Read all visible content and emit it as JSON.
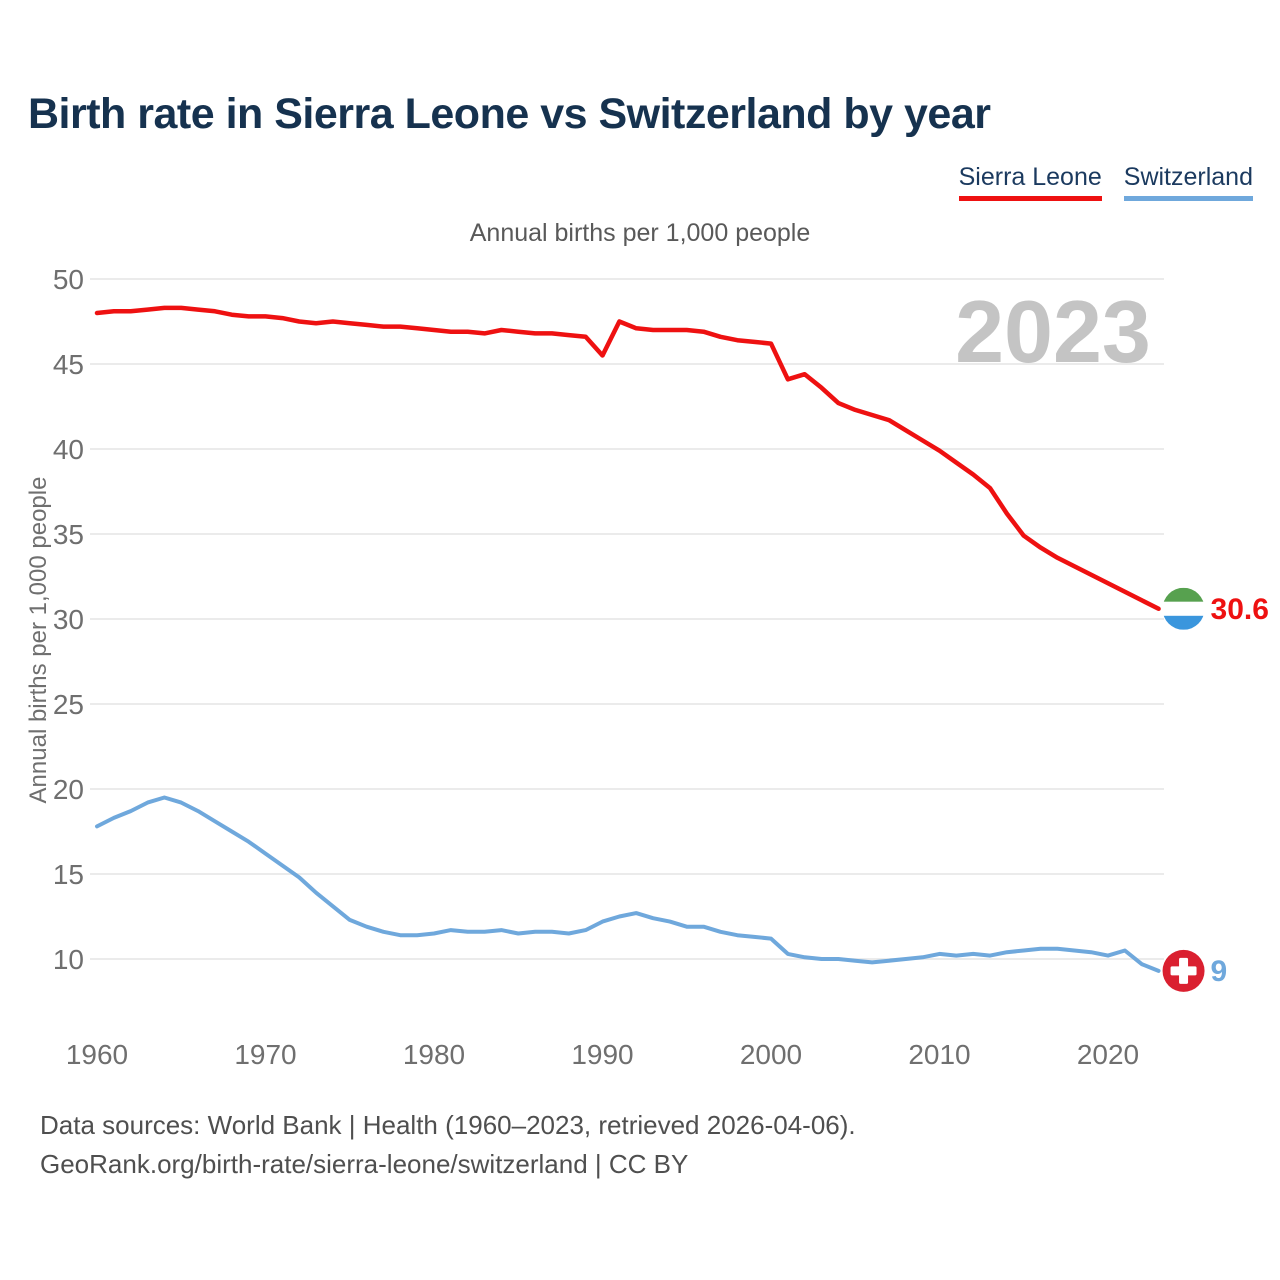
{
  "title": "Birth rate in Sierra Leone vs Switzerland by year",
  "subtitle": "Annual births per 1,000 people",
  "watermark": "2023",
  "legend": [
    {
      "label": "Sierra Leone",
      "color": "#ee1111"
    },
    {
      "label": "Switzerland",
      "color": "#6fa8dc"
    }
  ],
  "footer": {
    "line1": "Data sources: World Bank | Health (1960–2023, retrieved 2026-04-06).",
    "line2": "GeoRank.org/birth-rate/sierra-leone/switzerland | CC BY"
  },
  "chart_data": {
    "type": "line",
    "title": "Birth rate in Sierra Leone vs Switzerland by year",
    "ylabel": "Annual births per 1,000 people",
    "xlabel": "",
    "grid": "horizontal",
    "legend_position": "top-right",
    "ylim": [
      8.5,
      50
    ],
    "xlim": [
      1960,
      2023
    ],
    "yticks": [
      10,
      15,
      20,
      25,
      30,
      35,
      40,
      45,
      50
    ],
    "xticks": [
      1960,
      1970,
      1980,
      1990,
      2000,
      2010,
      2020
    ],
    "x": [
      1960,
      1961,
      1962,
      1963,
      1964,
      1965,
      1966,
      1967,
      1968,
      1969,
      1970,
      1971,
      1972,
      1973,
      1974,
      1975,
      1976,
      1977,
      1978,
      1979,
      1980,
      1981,
      1982,
      1983,
      1984,
      1985,
      1986,
      1987,
      1988,
      1989,
      1990,
      1991,
      1992,
      1993,
      1994,
      1995,
      1996,
      1997,
      1998,
      1999,
      2000,
      2001,
      2002,
      2003,
      2004,
      2005,
      2006,
      2007,
      2008,
      2009,
      2010,
      2011,
      2012,
      2013,
      2014,
      2015,
      2016,
      2017,
      2018,
      2019,
      2020,
      2021,
      2022,
      2023
    ],
    "series": [
      {
        "name": "Sierra Leone",
        "color": "#ee1111",
        "line_width": 4.5,
        "end_label": "30.6",
        "flag": "sierra-leone",
        "flag_colors": {
          "top": "#57a14f",
          "middle": "#ffffff",
          "bottom": "#3a96dd"
        },
        "values": [
          48.0,
          48.1,
          48.1,
          48.2,
          48.3,
          48.3,
          48.2,
          48.1,
          47.9,
          47.8,
          47.8,
          47.7,
          47.5,
          47.4,
          47.5,
          47.4,
          47.3,
          47.2,
          47.2,
          47.1,
          47.0,
          46.9,
          46.9,
          46.8,
          47.0,
          46.9,
          46.8,
          46.8,
          46.7,
          46.6,
          45.5,
          47.5,
          47.1,
          47.0,
          47.0,
          47.0,
          46.9,
          46.6,
          46.4,
          46.3,
          46.2,
          44.1,
          44.4,
          43.6,
          42.7,
          42.3,
          42.0,
          41.7,
          41.1,
          40.5,
          39.9,
          39.2,
          38.5,
          37.7,
          36.2,
          34.9,
          34.2,
          33.6,
          33.1,
          32.6,
          32.1,
          31.6,
          31.1,
          30.6
        ]
      },
      {
        "name": "Switzerland",
        "color": "#6fa8dc",
        "line_width": 4,
        "end_label": "9",
        "flag": "switzerland",
        "flag_colors": {
          "background": "#da2030",
          "cross": "#ffffff"
        },
        "values": [
          17.8,
          18.3,
          18.7,
          19.2,
          19.5,
          19.2,
          18.7,
          18.1,
          17.5,
          16.9,
          16.2,
          15.5,
          14.8,
          13.9,
          13.1,
          12.3,
          11.9,
          11.6,
          11.4,
          11.4,
          11.5,
          11.7,
          11.6,
          11.6,
          11.7,
          11.5,
          11.6,
          11.6,
          11.5,
          11.7,
          12.2,
          12.5,
          12.7,
          12.4,
          12.2,
          11.9,
          11.9,
          11.6,
          11.4,
          11.3,
          11.2,
          10.3,
          10.1,
          10.0,
          10.0,
          9.9,
          9.8,
          9.9,
          10.0,
          10.1,
          10.3,
          10.2,
          10.3,
          10.2,
          10.4,
          10.5,
          10.6,
          10.6,
          10.5,
          10.4,
          10.2,
          10.5,
          9.7,
          9.3
        ]
      }
    ]
  },
  "colors": {
    "title": "#16324f",
    "tick_labels": "#6f6f6f",
    "gridline": "#ebebeb",
    "watermark": "#c4c4c4",
    "footer": "#4f4f4f"
  }
}
